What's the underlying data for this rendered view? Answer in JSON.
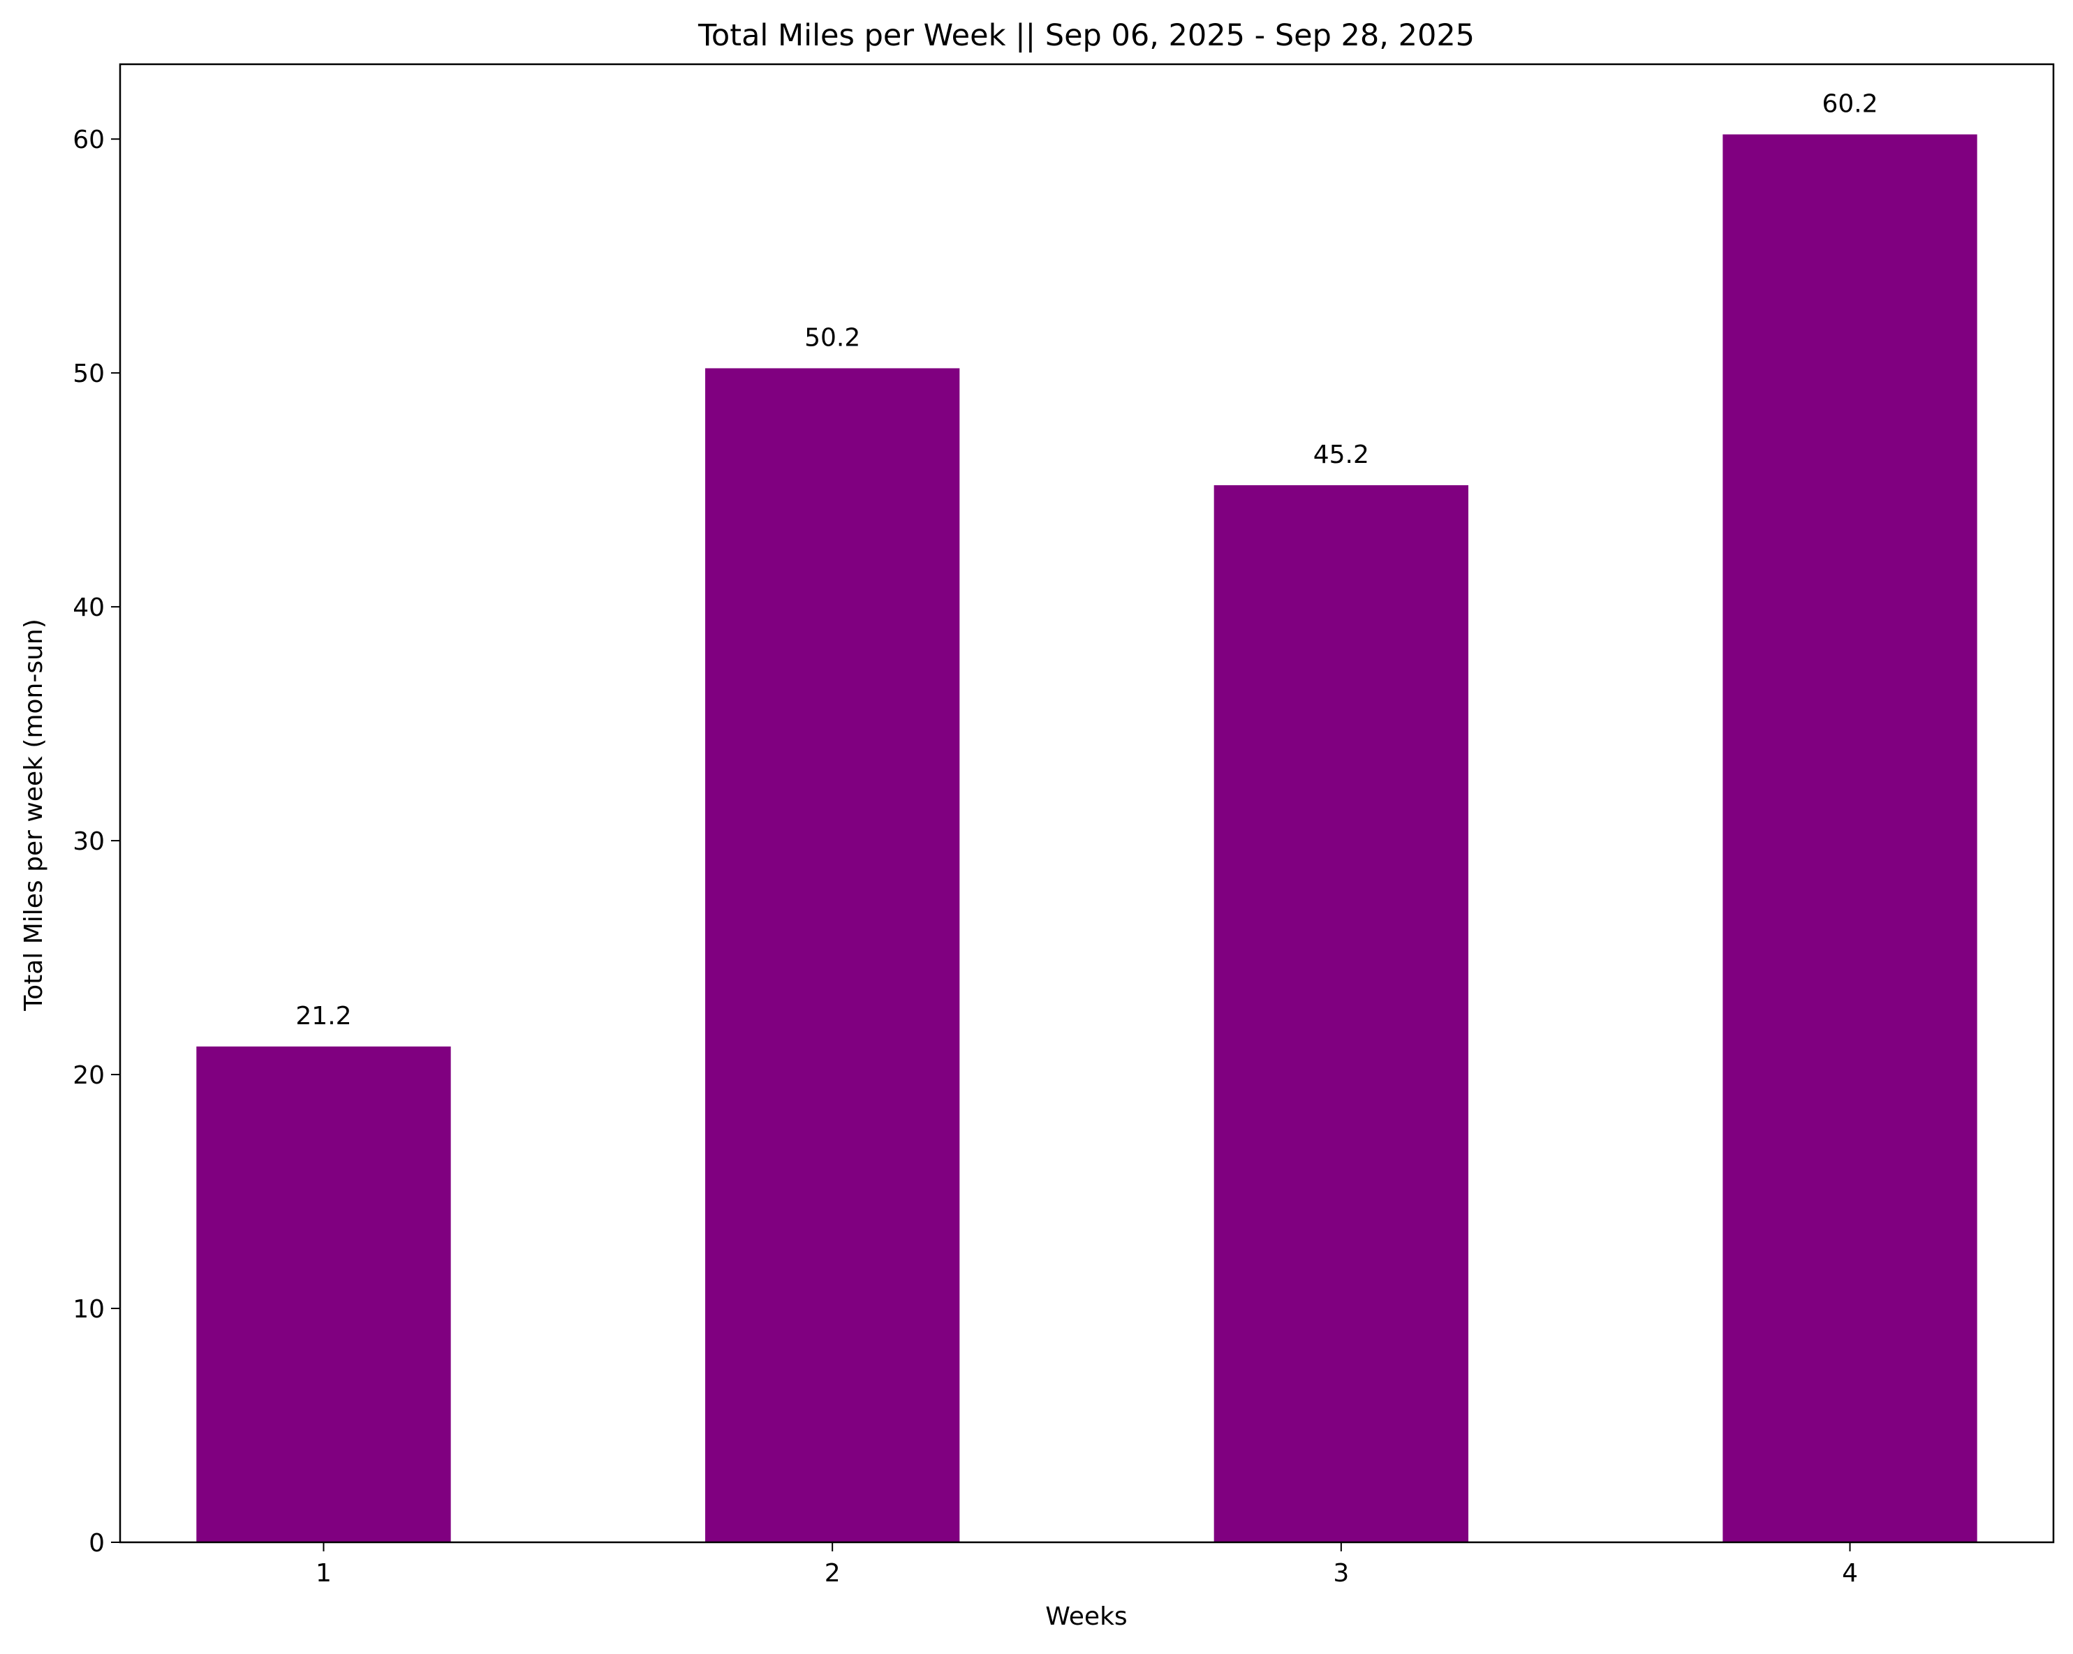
{
  "chart_data": {
    "type": "bar",
    "title": "Total Miles per Week || Sep 06, 2025 - Sep 28, 2025",
    "xlabel": "Weeks",
    "ylabel": "Total Miles per week  (mon-sun)",
    "categories": [
      "1",
      "2",
      "3",
      "4"
    ],
    "values": [
      21.2,
      50.2,
      45.2,
      60.2
    ],
    "data_labels": [
      "21.2",
      "50.2",
      "45.2",
      "60.2"
    ],
    "ylim": [
      0,
      63.2
    ],
    "yticks": [
      0,
      10,
      20,
      30,
      40,
      50,
      60
    ],
    "bar_color": "#800080",
    "grid": false,
    "legend": "none"
  }
}
